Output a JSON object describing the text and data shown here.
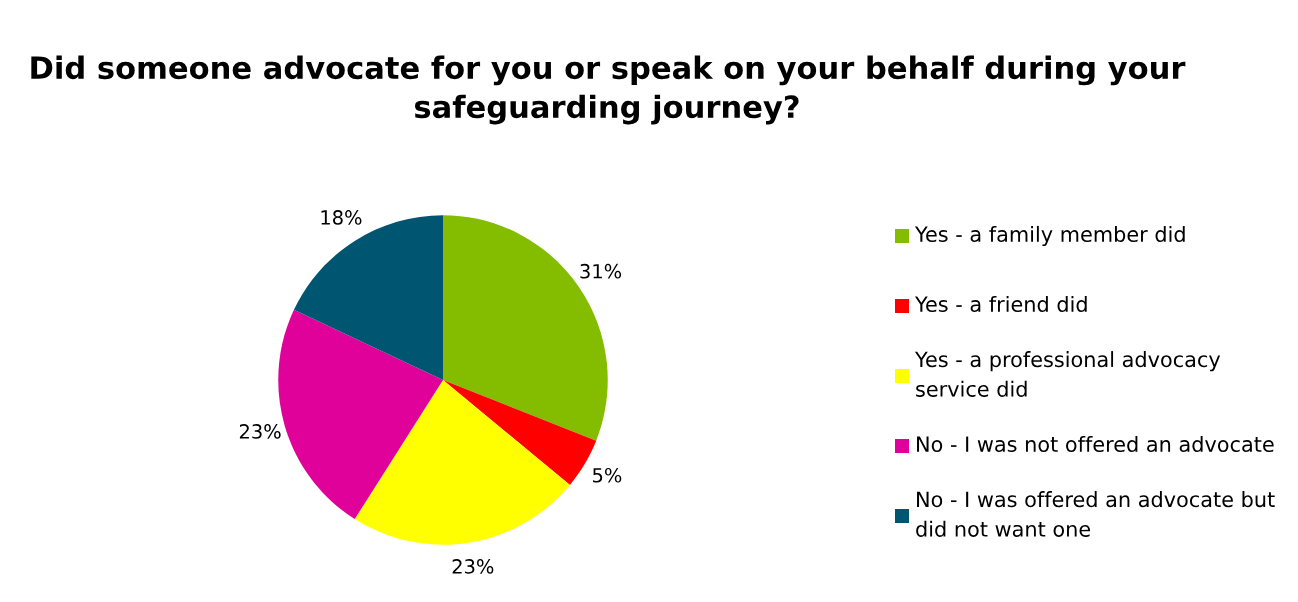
{
  "chart_data": {
    "type": "pie",
    "title": "Did someone advocate for you or speak on your behalf during your safeguarding journey?",
    "categories": [
      "Yes - a family member did",
      "Yes - a friend did",
      "Yes - a professional advocacy service did",
      "No - I was not offered an advocate",
      "No - I was offered an advocate but did not want one"
    ],
    "values": [
      31,
      5,
      23,
      23,
      18
    ],
    "colors": [
      "#84bd00",
      "#ff0000",
      "#ffff00",
      "#e0009a",
      "#005670"
    ],
    "value_labels": [
      "31%",
      "5%",
      "23%",
      "23%",
      "18%"
    ],
    "legend": "right"
  }
}
